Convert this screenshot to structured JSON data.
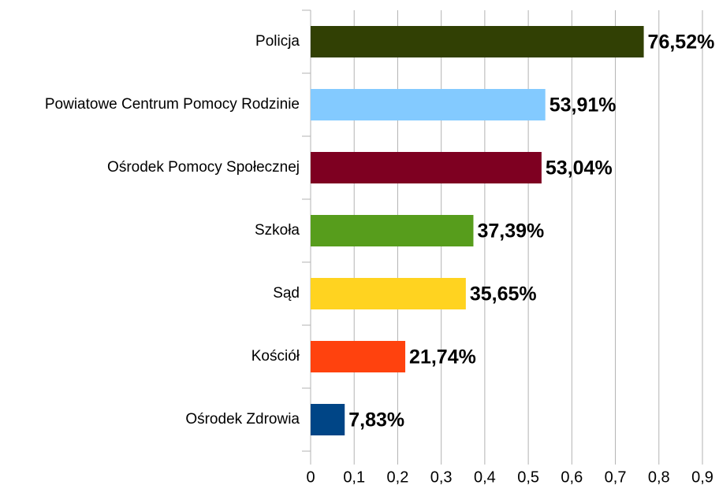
{
  "chart_data": {
    "type": "bar",
    "orientation": "horizontal",
    "categories": [
      "Policja",
      "Powiatowe Centrum Pomocy Rodzinie",
      "Ośrodek Pomocy Społecznej",
      "Szkoła",
      "Sąd",
      "Kościół",
      "Ośrodek Zdrowia"
    ],
    "values": [
      0.7652,
      0.5391,
      0.5304,
      0.3739,
      0.3565,
      0.2174,
      0.0783
    ],
    "value_labels": [
      "76,52%",
      "53,91%",
      "53,04%",
      "37,39%",
      "35,65%",
      "21,74%",
      "7,83%"
    ],
    "colors": [
      "#314004",
      "#83caff",
      "#7e0021",
      "#579d1c",
      "#ffd320",
      "#ff420e",
      "#004586"
    ],
    "xlim": [
      0,
      0.9
    ],
    "xticks": [
      0,
      {
        "value": 0.1,
        "label": "0,1"
      },
      {
        "value": 0.2,
        "label": "0,2"
      },
      {
        "value": 0.3,
        "label": "0,3"
      },
      {
        "value": 0.4,
        "label": "0,4"
      },
      {
        "value": 0.5,
        "label": "0,5"
      },
      {
        "value": 0.6,
        "label": "0,6"
      },
      {
        "value": 0.7,
        "label": "0,7"
      },
      {
        "value": 0.8,
        "label": "0,8"
      },
      {
        "value": 0.9,
        "label": "0,9"
      }
    ],
    "grid": true
  }
}
